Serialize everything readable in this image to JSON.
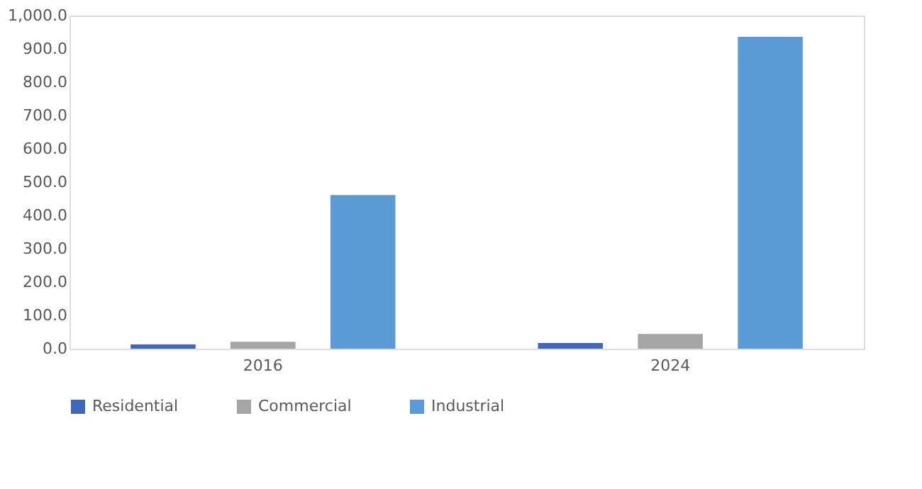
{
  "chart_data": {
    "type": "bar",
    "categories": [
      "2016",
      "2024"
    ],
    "series": [
      {
        "name": "Residential",
        "color": "#3f66b8",
        "values": [
          13,
          17
        ]
      },
      {
        "name": "Commercial",
        "color": "#a5a5a5",
        "values": [
          21,
          44
        ]
      },
      {
        "name": "Industrial",
        "color": "#5b9bd5",
        "values": [
          461,
          936
        ]
      }
    ],
    "ylim": [
      0,
      1000
    ],
    "yticks": [
      {
        "value": 0,
        "label": "0.0"
      },
      {
        "value": 100,
        "label": "100.0"
      },
      {
        "value": 200,
        "label": "200.0"
      },
      {
        "value": 300,
        "label": "300.0"
      },
      {
        "value": 400,
        "label": "400.0"
      },
      {
        "value": 500,
        "label": "500.0"
      },
      {
        "value": 600,
        "label": "600.0"
      },
      {
        "value": 700,
        "label": "700.0"
      },
      {
        "value": 800,
        "label": "800.0"
      },
      {
        "value": 900,
        "label": "900.0"
      },
      {
        "value": 1000,
        "label": "1,000.0"
      }
    ],
    "grid": false,
    "legend": "bottom"
  }
}
